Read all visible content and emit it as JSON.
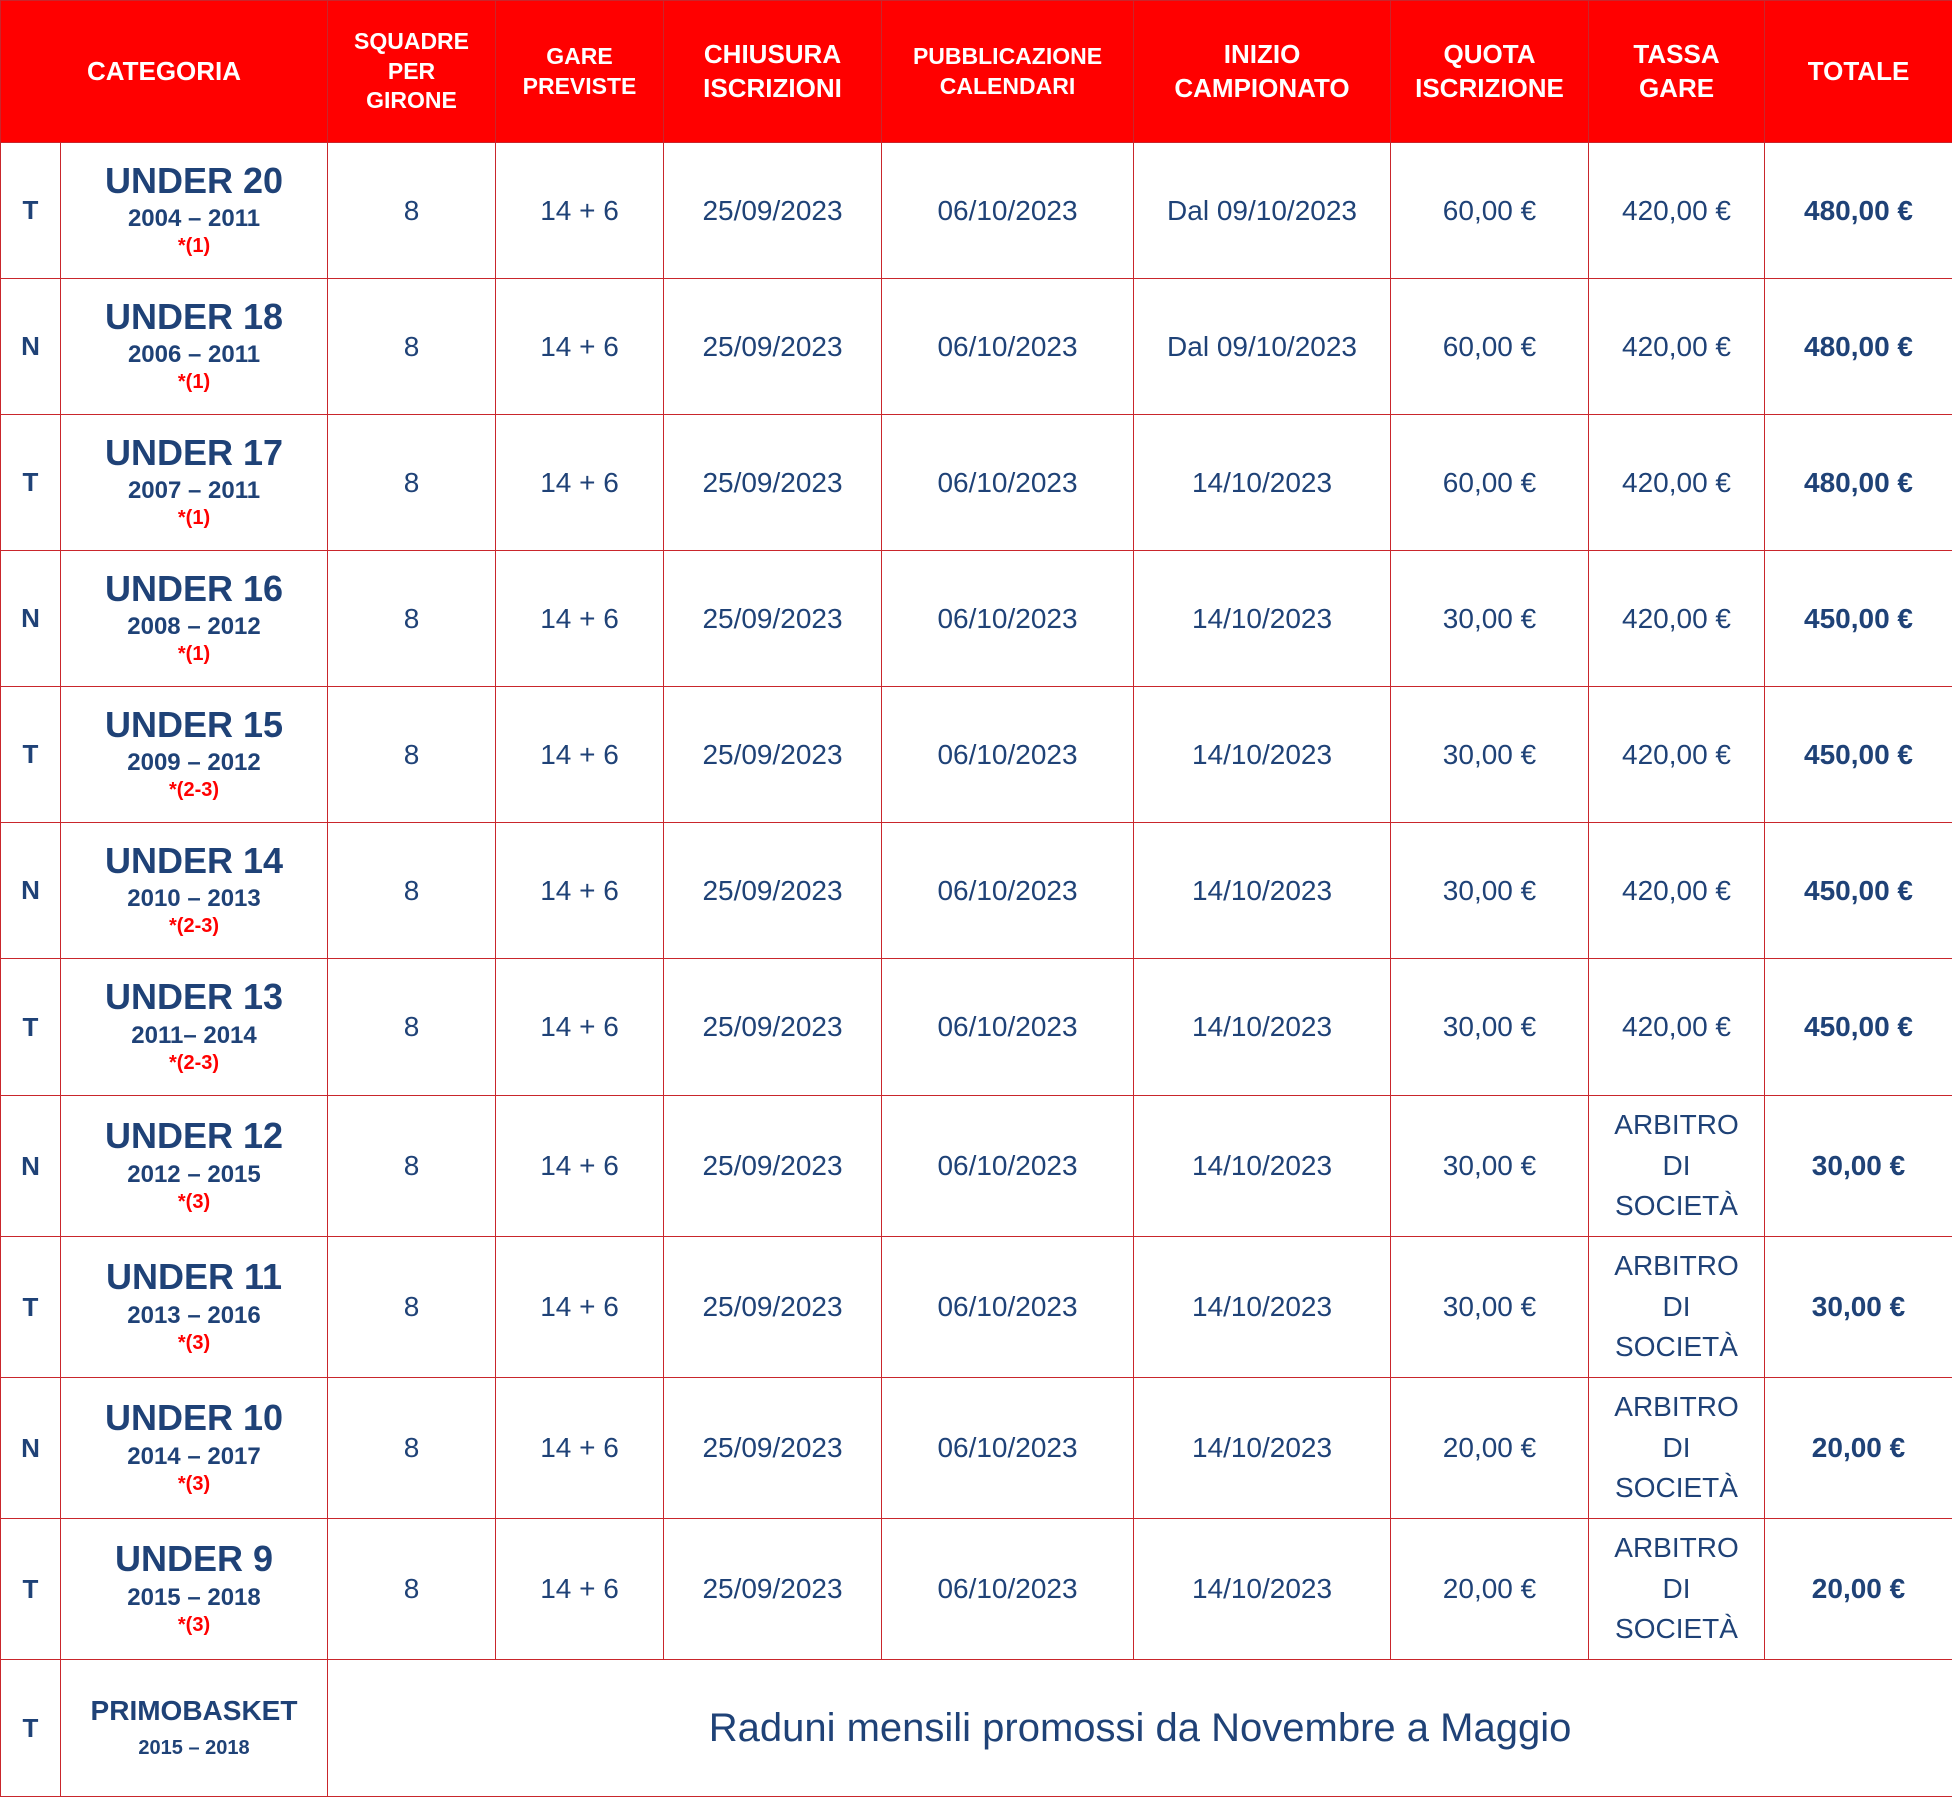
{
  "headers": {
    "categoria": "CATEGORIA",
    "squadre": [
      "SQUADRE",
      "PER",
      "GIRONE"
    ],
    "gare": [
      "GARE",
      "PREVISTE"
    ],
    "chiusura": [
      "CHIUSURA",
      "ISCRIZIONI"
    ],
    "pubblicazione": [
      "PUBBLICAZIONE",
      "CALENDARI"
    ],
    "inizio": [
      "INIZIO",
      "CAMPIONATO"
    ],
    "quota": [
      "QUOTA",
      "ISCRIZIONE"
    ],
    "tassa": [
      "TASSA",
      "GARE"
    ],
    "totale": "TOTALE"
  },
  "rows": [
    {
      "letter": "T",
      "name": "UNDER 20",
      "years": "2004 – 2011",
      "note": "*(1)",
      "squadre": "8",
      "gare": "14 + 6",
      "chiusura": "25/09/2023",
      "pubblicazione": "06/10/2023",
      "inizio": "Dal 09/10/2023",
      "quota": "60,00 €",
      "tassa": "420,00 €",
      "totale": "480,00 €"
    },
    {
      "letter": "N",
      "name": "UNDER 18",
      "years": "2006 – 2011",
      "note": "*(1)",
      "squadre": "8",
      "gare": "14 + 6",
      "chiusura": "25/09/2023",
      "pubblicazione": "06/10/2023",
      "inizio": "Dal 09/10/2023",
      "quota": "60,00 €",
      "tassa": "420,00 €",
      "totale": "480,00 €"
    },
    {
      "letter": "T",
      "name": "UNDER 17",
      "years": "2007 – 2011",
      "note": "*(1)",
      "squadre": "8",
      "gare": "14 + 6",
      "chiusura": "25/09/2023",
      "pubblicazione": "06/10/2023",
      "inizio": "14/10/2023",
      "quota": "60,00 €",
      "tassa": "420,00 €",
      "totale": "480,00 €"
    },
    {
      "letter": "N",
      "name": "UNDER 16",
      "years": "2008 – 2012",
      "note": "*(1)",
      "squadre": "8",
      "gare": "14 + 6",
      "chiusura": "25/09/2023",
      "pubblicazione": "06/10/2023",
      "inizio": "14/10/2023",
      "quota": "30,00 €",
      "tassa": "420,00 €",
      "totale": "450,00 €"
    },
    {
      "letter": "T",
      "name": "UNDER 15",
      "years": "2009 – 2012",
      "note": "*(2-3)",
      "squadre": "8",
      "gare": "14 + 6",
      "chiusura": "25/09/2023",
      "pubblicazione": "06/10/2023",
      "inizio": "14/10/2023",
      "quota": "30,00 €",
      "tassa": "420,00 €",
      "totale": "450,00 €"
    },
    {
      "letter": "N",
      "name": "UNDER 14",
      "years": "2010 – 2013",
      "note": "*(2-3)",
      "squadre": "8",
      "gare": "14 + 6",
      "chiusura": "25/09/2023",
      "pubblicazione": "06/10/2023",
      "inizio": "14/10/2023",
      "quota": "30,00 €",
      "tassa": "420,00 €",
      "totale": "450,00 €"
    },
    {
      "letter": "T",
      "name": "UNDER 13",
      "years": "2011– 2014",
      "note": "*(2-3)",
      "squadre": "8",
      "gare": "14 + 6",
      "chiusura": "25/09/2023",
      "pubblicazione": "06/10/2023",
      "inizio": "14/10/2023",
      "quota": "30,00 €",
      "tassa": "420,00 €",
      "totale": "450,00 €"
    },
    {
      "letter": "N",
      "name": "UNDER 12",
      "years": "2012 – 2015",
      "note": "*(3)",
      "squadre": "8",
      "gare": "14 + 6",
      "chiusura": "25/09/2023",
      "pubblicazione": "06/10/2023",
      "inizio": "14/10/2023",
      "quota": "30,00 €",
      "tassa": [
        "ARBITRO",
        "DI",
        "SOCIETÀ"
      ],
      "totale": "30,00 €"
    },
    {
      "letter": "T",
      "name": "UNDER 11",
      "years": "2013 – 2016",
      "note": "*(3)",
      "squadre": "8",
      "gare": "14 + 6",
      "chiusura": "25/09/2023",
      "pubblicazione": "06/10/2023",
      "inizio": "14/10/2023",
      "quota": "30,00 €",
      "tassa": [
        "ARBITRO",
        "DI",
        "SOCIETÀ"
      ],
      "totale": "30,00 €"
    },
    {
      "letter": "N",
      "name": "UNDER 10",
      "years": "2014 – 2017",
      "note": "*(3)",
      "squadre": "8",
      "gare": "14 + 6",
      "chiusura": "25/09/2023",
      "pubblicazione": "06/10/2023",
      "inizio": "14/10/2023",
      "quota": "20,00 €",
      "tassa": [
        "ARBITRO",
        "DI",
        "SOCIETÀ"
      ],
      "totale": "20,00 €"
    },
    {
      "letter": "T",
      "name": "UNDER 9",
      "years": "2015 – 2018",
      "note": "*(3)",
      "squadre": "8",
      "gare": "14 + 6",
      "chiusura": "25/09/2023",
      "pubblicazione": "06/10/2023",
      "inizio": "14/10/2023",
      "quota": "20,00 €",
      "tassa": [
        "ARBITRO",
        "DI",
        "SOCIETÀ"
      ],
      "totale": "20,00 €"
    }
  ],
  "primobasket": {
    "letter": "T",
    "name": "PRIMOBASKET",
    "years": "2015 – 2018",
    "text": "Raduni mensili promossi da Novembre a Maggio"
  },
  "colors": {
    "header_bg": "#ff0000",
    "text_blue": "#1f4277",
    "total_red": "#ff0000",
    "border": "#c9262c"
  }
}
